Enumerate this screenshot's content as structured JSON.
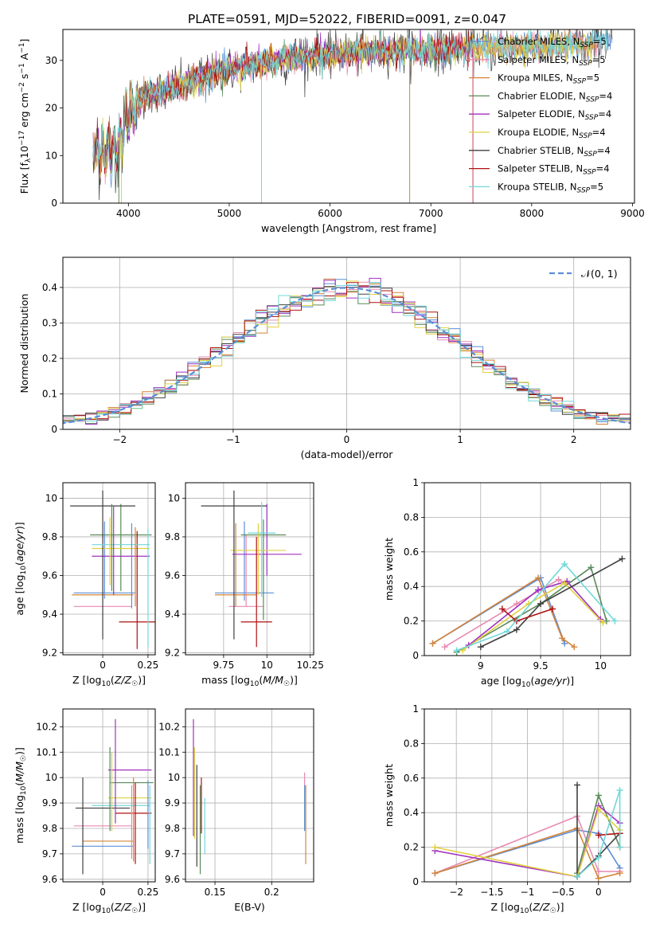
{
  "title": "PLATE=0591, MJD=52022, FIBERID=0091, z=0.047",
  "colors": [
    "#5b8fd6",
    "#e88ab2",
    "#d4843a",
    "#5a8a5a",
    "#a030c0",
    "#e0d040",
    "#404040",
    "#b01010",
    "#70d8d8"
  ],
  "chart_data": [
    {
      "id": "spectrum",
      "type": "line",
      "xlabel": "wavelength [Angstrom, rest frame]",
      "ylabel": "Flux [f_λ 10^-17 erg cm^-2 s^-1 A^-1]",
      "xlim": [
        3350,
        9020
      ],
      "ylim": [
        0,
        36.5
      ],
      "xticks": [
        4000,
        5000,
        6000,
        7000,
        8000,
        9000
      ],
      "yticks": [
        0,
        10,
        20,
        30
      ],
      "legend": {
        "placement": "top-right",
        "entries": [
          {
            "name": "Chabrier MILES",
            "n": "5"
          },
          {
            "name": "Salpeter MILES",
            "n": "5"
          },
          {
            "name": "Kroupa MILES",
            "n": "5"
          },
          {
            "name": "Chabrier ELODIE",
            "n": "4"
          },
          {
            "name": "Salpeter ELODIE",
            "n": "4"
          },
          {
            "name": "Kroupa ELODIE",
            "n": "4"
          },
          {
            "name": "Chabrier STELIB",
            "n": "4"
          },
          {
            "name": "Salpeter STELIB",
            "n": "4"
          },
          {
            "name": "Kroupa STELIB",
            "n": "5"
          }
        ]
      },
      "continuum": [
        [
          3650,
          12
        ],
        [
          3700,
          10
        ],
        [
          3800,
          11
        ],
        [
          3900,
          12
        ],
        [
          4000,
          19
        ],
        [
          4100,
          21
        ],
        [
          4200,
          23
        ],
        [
          4400,
          24
        ],
        [
          4600,
          25
        ],
        [
          4800,
          27
        ],
        [
          5000,
          28
        ],
        [
          5200,
          29
        ],
        [
          5500,
          30
        ],
        [
          5800,
          31
        ],
        [
          6000,
          31.2
        ],
        [
          6300,
          31.5
        ],
        [
          6500,
          32
        ],
        [
          6800,
          32.2
        ],
        [
          7000,
          32.2
        ],
        [
          7400,
          32.5
        ],
        [
          7800,
          33
        ],
        [
          8200,
          33
        ],
        [
          8500,
          33.3
        ],
        [
          8800,
          34.5
        ]
      ]
    },
    {
      "id": "residual-hist",
      "type": "histogram",
      "xlabel": "(data-model)/error",
      "ylabel": "Normed distribution",
      "xlim": [
        -2.5,
        2.5
      ],
      "ylim": [
        0,
        0.485
      ],
      "xticks": [
        -2,
        -1,
        0,
        1,
        2
      ],
      "yticks": [
        0.0,
        0.1,
        0.2,
        0.3,
        0.4
      ],
      "grid": true,
      "legend": {
        "placement": "top-right",
        "entries": [
          "𝒩(0, 1)"
        ]
      },
      "bin_width": 0.1,
      "reference_curve": "normal(0,1)"
    },
    {
      "id": "age-vs-Z",
      "type": "errorbar",
      "xlabel": "Z [log10(Z/Z☉)]",
      "ylabel": "age [log10(age/yr)]",
      "xlim": [
        -0.22,
        0.29
      ],
      "ylim": [
        9.19,
        10.08
      ],
      "xticks": [
        0.0,
        0.25
      ],
      "yticks": [
        9.2,
        9.4,
        9.6,
        9.8,
        10.0
      ],
      "grid": true,
      "points": [
        {
          "x": 0.01,
          "y": 9.51,
          "xe": 0.17,
          "ye": 0.0,
          "ylo": 9.48,
          "yhi": 9.88,
          "c": 0
        },
        {
          "x": 0.0,
          "y": 9.44,
          "xe": 0.16,
          "ye": 0.0,
          "ylo": 9.44,
          "yhi": 9.44,
          "c": 1
        },
        {
          "x": 0.0,
          "y": 9.5,
          "xe": 0.17,
          "ye": 0.0,
          "ylo": 9.5,
          "yhi": 9.5,
          "c": 2
        },
        {
          "x": 0.1,
          "y": 9.81,
          "xe": 0.17,
          "ye": 0.0,
          "ylo": 9.52,
          "yhi": 9.97,
          "c": 3
        },
        {
          "x": 0.1,
          "y": 9.7,
          "xe": 0.16,
          "ye": 0.0,
          "ylo": 9.7,
          "yhi": 9.7,
          "c": 4
        },
        {
          "x": 0.1,
          "y": 9.74,
          "xe": 0.16,
          "ye": 0.0,
          "ylo": 9.74,
          "yhi": 9.74,
          "c": 5
        },
        {
          "x": 0.0,
          "y": 9.96,
          "xe": 0.18,
          "ye": 0.0,
          "ylo": 9.27,
          "yhi": 10.04,
          "c": 6
        },
        {
          "x": 0.19,
          "y": 9.36,
          "xe": 0.1,
          "ye": 0.0,
          "ylo": 9.22,
          "yhi": 9.83,
          "c": 7
        },
        {
          "x": 0.1,
          "y": 9.76,
          "xe": 0.16,
          "ye": 0.0,
          "ylo": 9.76,
          "yhi": 9.76,
          "c": 8
        }
      ],
      "extra_vlines": [
        [
          0.05,
          9.52,
          9.97,
          3
        ],
        [
          0.06,
          9.5,
          9.96,
          4
        ],
        [
          0.16,
          9.43,
          9.87,
          0
        ],
        [
          0.18,
          9.44,
          9.85,
          2
        ],
        [
          0.25,
          9.23,
          9.84,
          8
        ],
        [
          0.04,
          9.55,
          9.9,
          5
        ]
      ]
    },
    {
      "id": "age-vs-mass",
      "type": "errorbar",
      "xlabel": "mass [log10(M/M☉)]",
      "ylabel": "",
      "xlim": [
        9.53,
        10.27
      ],
      "ylim": [
        9.19,
        10.08
      ],
      "xticks": [
        9.75,
        10.0,
        10.25
      ],
      "yticks": [
        9.2,
        9.4,
        9.6,
        9.8,
        10.0
      ],
      "grid": true,
      "points": [
        {
          "x": 9.87,
          "y": 9.51,
          "xe": 0.17,
          "ylo": 9.47,
          "yhi": 9.88,
          "c": 0
        },
        {
          "x": 9.88,
          "y": 9.44,
          "xe": 0.1,
          "ylo": 9.44,
          "yhi": 9.81,
          "c": 1
        },
        {
          "x": 9.82,
          "y": 9.5,
          "xe": 0.12,
          "ylo": 9.44,
          "yhi": 9.87,
          "c": 2
        },
        {
          "x": 9.98,
          "y": 9.81,
          "xe": 0.13,
          "ylo": 9.37,
          "yhi": 9.89,
          "c": 3
        },
        {
          "x": 10.0,
          "y": 9.71,
          "xe": 0.2,
          "ylo": 9.6,
          "yhi": 9.97,
          "c": 4
        },
        {
          "x": 9.95,
          "y": 9.73,
          "xe": 0.16,
          "ylo": 9.5,
          "yhi": 9.87,
          "c": 5
        },
        {
          "x": 9.81,
          "y": 9.96,
          "xe": 0.19,
          "ylo": 9.27,
          "yhi": 10.04,
          "c": 6
        },
        {
          "x": 9.94,
          "y": 9.36,
          "xe": 0.09,
          "ylo": 9.23,
          "yhi": 9.8,
          "c": 7
        },
        {
          "x": 9.97,
          "y": 9.82,
          "xe": 0.08,
          "ylo": 9.49,
          "yhi": 9.98,
          "c": 8
        }
      ]
    },
    {
      "id": "massweight-vs-age",
      "type": "line",
      "xlabel": "age [log10(age/yr)]",
      "ylabel": "mass weight",
      "xlim": [
        8.53,
        10.25
      ],
      "ylim": [
        0,
        1.0
      ],
      "xticks": [
        9.0,
        9.5,
        10.0
      ],
      "yticks": [
        0.0,
        0.2,
        0.4,
        0.6,
        0.8,
        1.0
      ],
      "grid": true,
      "series": [
        {
          "c": 0,
          "x": [
            8.6,
            9.5,
            9.7
          ],
          "y": [
            0.07,
            0.45,
            0.07
          ]
        },
        {
          "c": 1,
          "x": [
            8.7,
            9.3,
            9.65,
            9.7
          ],
          "y": [
            0.05,
            0.3,
            0.44,
            0.42
          ]
        },
        {
          "c": 2,
          "x": [
            8.6,
            9.48,
            9.68,
            9.78
          ],
          "y": [
            0.07,
            0.45,
            0.1,
            0.05
          ]
        },
        {
          "c": 3,
          "x": [
            8.8,
            9.5,
            9.92,
            10.05
          ],
          "y": [
            0.02,
            0.3,
            0.51,
            0.2
          ]
        },
        {
          "c": 4,
          "x": [
            8.9,
            9.48,
            9.72,
            10.0
          ],
          "y": [
            0.06,
            0.38,
            0.43,
            0.21
          ]
        },
        {
          "c": 5,
          "x": [
            8.85,
            9.4,
            9.7,
            10.02
          ],
          "y": [
            0.03,
            0.3,
            0.42,
            0.19
          ]
        },
        {
          "c": 6,
          "x": [
            9.0,
            9.3,
            9.5,
            10.18
          ],
          "y": [
            0.05,
            0.15,
            0.3,
            0.56
          ]
        },
        {
          "c": 7,
          "x": [
            9.18,
            9.3,
            9.6
          ],
          "y": [
            0.27,
            0.2,
            0.27
          ]
        },
        {
          "c": 8,
          "x": [
            8.8,
            9.22,
            9.7,
            10.12
          ],
          "y": [
            0.03,
            0.14,
            0.53,
            0.2
          ]
        }
      ]
    },
    {
      "id": "mass-vs-Z",
      "type": "errorbar",
      "xlabel": "Z [log10(Z/Z☉)]",
      "ylabel": "mass [log10(M/M☉)]",
      "xlim": [
        -0.22,
        0.29
      ],
      "ylim": [
        9.59,
        10.27
      ],
      "xticks": [
        0.0,
        0.25
      ],
      "yticks": [
        9.6,
        9.7,
        9.8,
        9.9,
        10.0,
        10.1,
        10.2
      ],
      "grid": true,
      "points": [
        {
          "x": 0.0,
          "y": 9.73,
          "xe": 0.17,
          "ylo": 9.73,
          "yhi": 9.73,
          "c": 0
        },
        {
          "x": 0.0,
          "y": 9.81,
          "xe": 0.16,
          "ylo": 9.81,
          "yhi": 9.81,
          "c": 1
        },
        {
          "x": 0.03,
          "y": 9.75,
          "xe": 0.14,
          "ylo": 9.75,
          "yhi": 9.75,
          "c": 2
        },
        {
          "x": 0.16,
          "y": 9.98,
          "xe": 0.12,
          "ylo": 9.98,
          "yhi": 9.98,
          "c": 3
        },
        {
          "x": 0.15,
          "y": 10.03,
          "xe": 0.12,
          "ylo": 10.03,
          "yhi": 10.03,
          "c": 4
        },
        {
          "x": 0.15,
          "y": 9.92,
          "xe": 0.12,
          "ylo": 9.92,
          "yhi": 9.92,
          "c": 5
        },
        {
          "x": 0.0,
          "y": 9.88,
          "xe": 0.15,
          "ylo": 9.88,
          "yhi": 9.88,
          "c": 6
        },
        {
          "x": 0.17,
          "y": 9.86,
          "xe": 0.1,
          "ylo": 9.86,
          "yhi": 9.86,
          "c": 7
        },
        {
          "x": 0.1,
          "y": 9.89,
          "xe": 0.16,
          "ylo": 9.89,
          "yhi": 9.89,
          "c": 8
        }
      ],
      "extra_vlines": [
        [
          -0.11,
          9.62,
          10.0,
          6
        ],
        [
          0.04,
          9.79,
          10.12,
          3
        ],
        [
          0.07,
          9.82,
          10.23,
          4
        ],
        [
          0.05,
          9.79,
          10.1,
          5
        ],
        [
          0.17,
          9.67,
          10.0,
          2
        ],
        [
          0.18,
          9.66,
          9.98,
          7
        ],
        [
          0.26,
          9.66,
          9.97,
          8
        ],
        [
          0.25,
          9.72,
          9.99,
          0
        ],
        [
          0.16,
          9.68,
          9.97,
          1
        ]
      ]
    },
    {
      "id": "mass-vs-EBV",
      "type": "errorbar",
      "xlabel": "E(B-V)",
      "ylabel": "",
      "xlim": [
        0.124,
        0.237
      ],
      "ylim": [
        9.59,
        10.27
      ],
      "xticks": [
        0.15,
        0.2
      ],
      "yticks": [
        9.6,
        9.7,
        9.8,
        9.9,
        10.0,
        10.1,
        10.2
      ],
      "grid": true,
      "vlines": [
        [
          0.131,
          9.77,
          10.23,
          4
        ],
        [
          0.132,
          9.76,
          10.12,
          5
        ],
        [
          0.134,
          9.65,
          10.05,
          6
        ],
        [
          0.137,
          9.62,
          9.97,
          3
        ],
        [
          0.138,
          9.78,
          10.0,
          7
        ],
        [
          0.141,
          9.7,
          9.92,
          8
        ],
        [
          0.229,
          9.8,
          10.02,
          1
        ],
        [
          0.23,
          9.66,
          9.97,
          2
        ],
        [
          0.229,
          9.79,
          9.97,
          0
        ]
      ]
    },
    {
      "id": "massweight-vs-Z",
      "type": "line",
      "xlabel": "Z [log10(Z/Z☉)]",
      "ylabel": "mass weight",
      "xlim": [
        -2.45,
        0.45
      ],
      "ylim": [
        0,
        1.0
      ],
      "xticks": [
        -2.0,
        -1.5,
        -1.0,
        -0.5,
        0.0
      ],
      "yticks": [
        0.0,
        0.2,
        0.4,
        0.6,
        0.8,
        1.0
      ],
      "grid": true,
      "series": [
        {
          "c": 0,
          "x": [
            -2.3,
            -0.3,
            0.0,
            0.3
          ],
          "y": [
            0.05,
            0.3,
            0.28,
            0.08
          ]
        },
        {
          "c": 1,
          "x": [
            -2.3,
            -0.3,
            0.0,
            0.3
          ],
          "y": [
            0.05,
            0.38,
            0.06,
            0.06
          ]
        },
        {
          "c": 2,
          "x": [
            -2.3,
            -0.3,
            0.0,
            0.3
          ],
          "y": [
            0.05,
            0.31,
            0.02,
            0.05
          ]
        },
        {
          "c": 3,
          "x": [
            -0.3,
            0.0,
            0.3
          ],
          "y": [
            0.05,
            0.5,
            0.2
          ]
        },
        {
          "c": 4,
          "x": [
            -2.3,
            -0.3,
            0.0,
            0.3
          ],
          "y": [
            0.18,
            0.03,
            0.44,
            0.34
          ]
        },
        {
          "c": 5,
          "x": [
            -2.3,
            -0.3,
            0.0,
            0.3
          ],
          "y": [
            0.2,
            0.03,
            0.42,
            0.3
          ]
        },
        {
          "c": 6,
          "x": [
            -0.3,
            -0.3,
            0.0,
            0.3
          ],
          "y": [
            0.56,
            0.03,
            0.15,
            0.28
          ]
        },
        {
          "c": 7,
          "x": [
            0.0,
            0.3
          ],
          "y": [
            0.27,
            0.28
          ]
        },
        {
          "c": 8,
          "x": [
            -0.3,
            0.0,
            0.3,
            0.3
          ],
          "y": [
            0.03,
            0.14,
            0.53,
            0.2
          ]
        }
      ]
    }
  ]
}
